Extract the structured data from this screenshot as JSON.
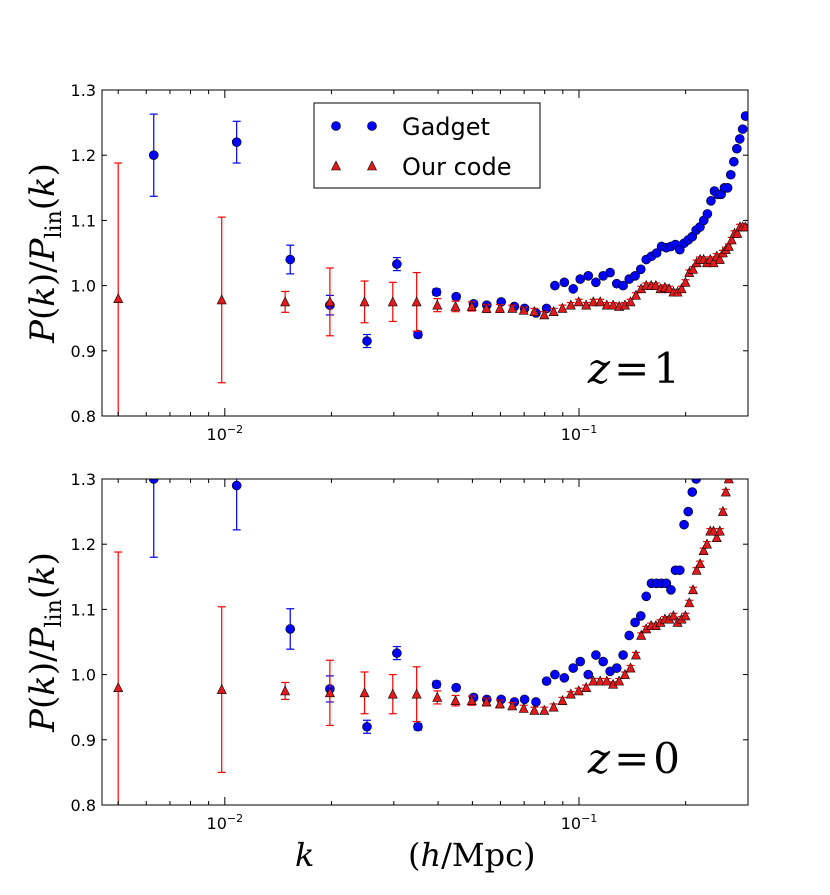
{
  "chart_data": [
    {
      "type": "scatter",
      "panel": "top",
      "annotation": "z=1",
      "annotation_parts": [
        "z",
        "=",
        "1"
      ],
      "ylabel": "P(k)/P_lin(k)",
      "ylabel_parts": {
        "P": "P",
        "k": "k",
        "lin": "lin",
        "open": "(",
        "close": ")",
        "slash": "/"
      },
      "xscale": "log",
      "xlim": [
        0.0045,
        0.3
      ],
      "ylim": [
        0.8,
        1.3
      ],
      "yticks": [
        "0.8",
        "0.9",
        "1.0",
        "1.1",
        "1.2",
        "1.3"
      ],
      "xticks": [
        {
          "base": "10",
          "exp": "−2",
          "value": 0.01
        },
        {
          "base": "10",
          "exp": "−1",
          "value": 0.1
        }
      ],
      "legend": {
        "location": "upper-center",
        "entries": [
          "Gadget",
          "Our code"
        ]
      },
      "series": [
        {
          "name": "Gadget",
          "marker": "circle",
          "color": "#0000ff",
          "x": [
            0.0063,
            0.0108,
            0.0153,
            0.0198,
            0.0252,
            0.0306,
            0.0351,
            0.0396,
            0.045,
            0.0504,
            0.0549,
            0.0603,
            0.0657,
            0.0702,
            0.0756,
            0.081,
            0.0855,
            0.0909,
            0.0963,
            0.1008,
            0.1062,
            0.1116,
            0.117,
            0.1224,
            0.1278,
            0.1332,
            0.1386,
            0.144,
            0.1494,
            0.1548,
            0.1602,
            0.1656,
            0.171,
            0.1764,
            0.1818,
            0.1872,
            0.1926,
            0.198,
            0.2034,
            0.2088,
            0.2142,
            0.2196,
            0.225,
            0.2304,
            0.2358,
            0.2412,
            0.2466,
            0.252,
            0.2574,
            0.2628,
            0.2682,
            0.2736,
            0.279,
            0.2844,
            0.2898,
            0.2952
          ],
          "y": [
            1.2,
            1.22,
            1.04,
            0.97,
            0.915,
            1.033,
            0.925,
            0.99,
            0.983,
            0.972,
            0.97,
            0.975,
            0.968,
            0.965,
            0.958,
            0.965,
            1.0,
            1.005,
            0.995,
            1.01,
            1.015,
            1.005,
            1.015,
            1.02,
            1.003,
            1.0,
            1.01,
            1.015,
            1.025,
            1.04,
            1.045,
            1.05,
            1.06,
            1.058,
            1.06,
            1.063,
            1.055,
            1.065,
            1.07,
            1.075,
            1.085,
            1.09,
            1.1,
            1.11,
            1.13,
            1.145,
            1.14,
            1.14,
            1.15,
            1.15,
            1.17,
            1.19,
            1.21,
            1.225,
            1.24,
            1.26
          ],
          "yerr": [
            0.063,
            0.032,
            0.022,
            0.015,
            0.01,
            0.01,
            0.005,
            0.005,
            0.004,
            0.004,
            0.003,
            0.003,
            0.003,
            0.003,
            0.003,
            0.003,
            0.003,
            0.003,
            0.003,
            0.003,
            0.003,
            0.003,
            0.003,
            0.003,
            0.003,
            0.003,
            0.003,
            0.003,
            0.003,
            0.003,
            0.003,
            0.003,
            0.003,
            0.003,
            0.003,
            0.003,
            0.003,
            0.003,
            0.003,
            0.003,
            0.003,
            0.003,
            0.003,
            0.003,
            0.003,
            0.003,
            0.003,
            0.003,
            0.003,
            0.003,
            0.003,
            0.003,
            0.003,
            0.003,
            0.003,
            0.003
          ]
        },
        {
          "name": "Our code",
          "marker": "triangle",
          "color": "#e31a1c",
          "x": [
            0.005,
            0.0098,
            0.0148,
            0.0198,
            0.0248,
            0.0298,
            0.0348,
            0.0398,
            0.0448,
            0.0498,
            0.0548,
            0.0598,
            0.0648,
            0.0698,
            0.0748,
            0.0798,
            0.0848,
            0.0898,
            0.0948,
            0.0998,
            0.1048,
            0.1098,
            0.1148,
            0.1198,
            0.1248,
            0.1298,
            0.1348,
            0.1398,
            0.1448,
            0.1498,
            0.1548,
            0.1598,
            0.1648,
            0.1698,
            0.1748,
            0.1798,
            0.1848,
            0.1898,
            0.1948,
            0.1998,
            0.2048,
            0.2098,
            0.2148,
            0.2198,
            0.2248,
            0.2298,
            0.2348,
            0.2398,
            0.2448,
            0.2498,
            0.2548,
            0.2598,
            0.2648,
            0.2698,
            0.2748,
            0.2798,
            0.2848,
            0.2898,
            0.2948
          ],
          "y": [
            0.98,
            0.978,
            0.975,
            0.975,
            0.975,
            0.975,
            0.975,
            0.97,
            0.968,
            0.968,
            0.965,
            0.965,
            0.965,
            0.962,
            0.96,
            0.955,
            0.96,
            0.965,
            0.97,
            0.975,
            0.97,
            0.975,
            0.975,
            0.97,
            0.97,
            0.968,
            0.97,
            0.975,
            0.985,
            0.995,
            1.0,
            1.0,
            1.0,
            0.995,
            0.997,
            0.995,
            0.99,
            0.99,
            0.995,
            1.005,
            1.02,
            1.025,
            1.035,
            1.04,
            1.04,
            1.035,
            1.04,
            1.035,
            1.045,
            1.04,
            1.05,
            1.055,
            1.06,
            1.07,
            1.08,
            1.08,
            1.09,
            1.09,
            1.09
          ],
          "yerr": [
            0.208,
            0.127,
            0.016,
            0.052,
            0.032,
            0.03,
            0.045,
            0.01,
            0.008,
            0.007,
            0.006,
            0.006,
            0.005,
            0.005,
            0.005,
            0.005,
            0.005,
            0.005,
            0.004,
            0.004,
            0.004,
            0.004,
            0.004,
            0.004,
            0.004,
            0.004,
            0.004,
            0.004,
            0.004,
            0.004,
            0.004,
            0.004,
            0.004,
            0.004,
            0.004,
            0.004,
            0.004,
            0.004,
            0.004,
            0.004,
            0.004,
            0.004,
            0.004,
            0.004,
            0.004,
            0.004,
            0.004,
            0.004,
            0.004,
            0.004,
            0.004,
            0.004,
            0.004,
            0.004,
            0.004,
            0.004,
            0.004,
            0.004,
            0.004
          ]
        }
      ]
    },
    {
      "type": "scatter",
      "panel": "bottom",
      "annotation": "z=0",
      "annotation_parts": [
        "z",
        "=",
        "0"
      ],
      "ylabel": "P(k)/P_lin(k)",
      "ylabel_parts": {
        "P": "P",
        "k": "k",
        "lin": "lin",
        "open": "(",
        "close": ")",
        "slash": "/"
      },
      "xlabel": "k (h/Mpc)",
      "xlabel_parts": {
        "k": "k",
        "open": "(",
        "h": "h",
        "slash": "/",
        "Mpc": "Mpc",
        "close": ")"
      },
      "xscale": "log",
      "xlim": [
        0.0045,
        0.3
      ],
      "ylim": [
        0.8,
        1.3
      ],
      "yticks": [
        "0.8",
        "0.9",
        "1.0",
        "1.1",
        "1.2",
        "1.3"
      ],
      "xticks": [
        {
          "base": "10",
          "exp": "−2",
          "value": 0.01
        },
        {
          "base": "10",
          "exp": "−1",
          "value": 0.1
        }
      ],
      "series": [
        {
          "name": "Gadget",
          "marker": "circle",
          "color": "#0000ff",
          "x": [
            0.0063,
            0.0108,
            0.0153,
            0.0198,
            0.0252,
            0.0306,
            0.0351,
            0.0396,
            0.045,
            0.0504,
            0.0549,
            0.0603,
            0.0657,
            0.0702,
            0.0756,
            0.081,
            0.0855,
            0.0909,
            0.0963,
            0.1008,
            0.1062,
            0.1116,
            0.117,
            0.1224,
            0.1278,
            0.1332,
            0.1386,
            0.144,
            0.1494,
            0.1548,
            0.1602,
            0.1656,
            0.171,
            0.1764,
            0.1818,
            0.1872,
            0.1926,
            0.198,
            0.2034,
            0.2088,
            0.2142
          ],
          "y": [
            1.3,
            1.29,
            1.07,
            0.978,
            0.92,
            1.033,
            0.92,
            0.985,
            0.98,
            0.965,
            0.962,
            0.962,
            0.958,
            0.962,
            0.958,
            0.99,
            1.0,
            0.995,
            1.01,
            1.02,
            1.0,
            1.03,
            1.02,
            1.005,
            1.01,
            1.03,
            1.06,
            1.08,
            1.09,
            1.12,
            1.14,
            1.14,
            1.14,
            1.14,
            1.13,
            1.16,
            1.16,
            1.23,
            1.25,
            1.28,
            1.3
          ],
          "yerr": [
            0.12,
            0.068,
            0.031,
            0.02,
            0.01,
            0.01,
            0.005,
            0.005,
            0.004,
            0.004,
            0.003,
            0.003,
            0.003,
            0.003,
            0.003,
            0.003,
            0.003,
            0.003,
            0.003,
            0.003,
            0.003,
            0.003,
            0.003,
            0.003,
            0.003,
            0.003,
            0.003,
            0.003,
            0.003,
            0.003,
            0.003,
            0.003,
            0.003,
            0.003,
            0.003,
            0.003,
            0.003,
            0.003,
            0.003,
            0.003,
            0.003
          ]
        },
        {
          "name": "Our code",
          "marker": "triangle",
          "color": "#e31a1c",
          "x": [
            0.005,
            0.0098,
            0.0148,
            0.0198,
            0.0248,
            0.0298,
            0.0348,
            0.0398,
            0.0448,
            0.0498,
            0.0548,
            0.0598,
            0.0648,
            0.0698,
            0.0748,
            0.0798,
            0.0848,
            0.0898,
            0.0948,
            0.0998,
            0.1048,
            0.1098,
            0.1148,
            0.1198,
            0.1248,
            0.1298,
            0.1348,
            0.1398,
            0.1448,
            0.1498,
            0.1548,
            0.1598,
            0.1648,
            0.1698,
            0.1748,
            0.1798,
            0.1848,
            0.1898,
            0.1948,
            0.1998,
            0.2048,
            0.2098,
            0.2148,
            0.2198,
            0.2248,
            0.2298,
            0.2348,
            0.2398,
            0.2448,
            0.2498,
            0.2548,
            0.2598,
            0.2648
          ],
          "y": [
            0.98,
            0.977,
            0.975,
            0.972,
            0.972,
            0.97,
            0.97,
            0.965,
            0.96,
            0.96,
            0.958,
            0.955,
            0.952,
            0.948,
            0.945,
            0.945,
            0.95,
            0.96,
            0.97,
            0.975,
            0.98,
            0.99,
            0.99,
            0.99,
            0.985,
            0.99,
            1.0,
            1.01,
            1.03,
            1.06,
            1.07,
            1.075,
            1.075,
            1.08,
            1.085,
            1.085,
            1.09,
            1.08,
            1.085,
            1.09,
            1.11,
            1.13,
            1.16,
            1.17,
            1.19,
            1.2,
            1.22,
            1.22,
            1.21,
            1.22,
            1.25,
            1.28,
            1.3
          ],
          "yerr": [
            0.208,
            0.127,
            0.013,
            0.05,
            0.032,
            0.03,
            0.042,
            0.01,
            0.008,
            0.007,
            0.006,
            0.006,
            0.005,
            0.005,
            0.005,
            0.005,
            0.005,
            0.005,
            0.004,
            0.004,
            0.004,
            0.004,
            0.004,
            0.004,
            0.004,
            0.004,
            0.004,
            0.004,
            0.004,
            0.004,
            0.004,
            0.004,
            0.004,
            0.004,
            0.004,
            0.004,
            0.004,
            0.004,
            0.004,
            0.004,
            0.004,
            0.004,
            0.004,
            0.004,
            0.004,
            0.004,
            0.004,
            0.004,
            0.004,
            0.004,
            0.004,
            0.004,
            0.004
          ]
        }
      ]
    }
  ]
}
